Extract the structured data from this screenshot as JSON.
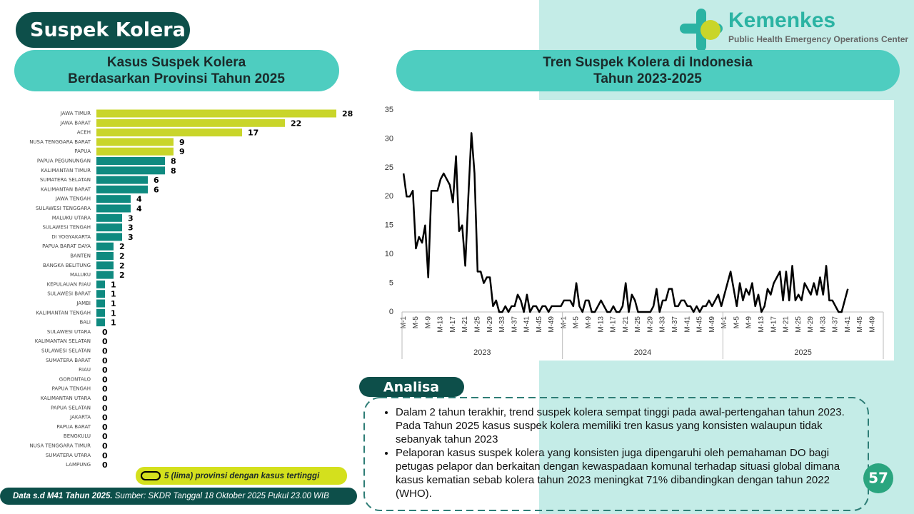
{
  "header": {
    "title": "Suspek Kolera",
    "logo_name": "Kemenkes",
    "logo_sub": "Public Health Emergency Operations Center"
  },
  "chart_data": [
    {
      "type": "hbar",
      "title": [
        "Kasus Suspek Kolera",
        "Berdasarkan Provinsi Tahun 2025"
      ],
      "categories": [
        "JAWA TIMUR",
        "JAWA BARAT",
        "ACEH",
        "NUSA TENGGARA BARAT",
        "PAPUA",
        "PAPUA PEGUNUNGAN",
        "KALIMANTAN TIMUR",
        "SUMATERA SELATAN",
        "KALIMANTAN BARAT",
        "JAWA TENGAH",
        "SULAWESI TENGGARA",
        "MALUKU UTARA",
        "SULAWESI TENGAH",
        "DI YOGYAKARTA",
        "PAPUA BARAT DAYA",
        "BANTEN",
        "BANGKA BELITUNG",
        "MALUKU",
        "KEPULAUAN RIAU",
        "SULAWESI BARAT",
        "JAMBI",
        "KALIMANTAN TENGAH",
        "BALI",
        "SULAWESI UTARA",
        "KALIMANTAN SELATAN",
        "SULAWESI SELATAN",
        "SUMATERA BARAT",
        "RIAU",
        "GORONTALO",
        "PAPUA TENGAH",
        "KALIMANTAN UTARA",
        "PAPUA SELATAN",
        "JAKARTA",
        "PAPUA BARAT",
        "BENGKULU",
        "NUSA TENGGARA TIMUR",
        "SUMATERA UTARA",
        "LAMPUNG"
      ],
      "values": [
        28,
        22,
        17,
        9,
        9,
        8,
        8,
        6,
        6,
        4,
        4,
        3,
        3,
        3,
        2,
        2,
        2,
        2,
        1,
        1,
        1,
        1,
        1,
        0,
        0,
        0,
        0,
        0,
        0,
        0,
        0,
        0,
        0,
        0,
        0,
        0,
        0,
        0
      ],
      "colors": [
        "#c9d52a",
        "#c9d52a",
        "#c9d52a",
        "#c9d52a",
        "#c9d52a",
        "#0f8a80",
        "#0f8a80",
        "#0f8a80",
        "#0f8a80",
        "#0f8a80",
        "#0f8a80",
        "#0f8a80",
        "#0f8a80",
        "#0f8a80",
        "#0f8a80",
        "#0f8a80",
        "#0f8a80",
        "#0f8a80",
        "#0f8a80",
        "#0f8a80",
        "#0f8a80",
        "#0f8a80",
        "#0f8a80",
        "#0f8a80",
        "#0f8a80",
        "#0f8a80",
        "#0f8a80",
        "#0f8a80",
        "#0f8a80",
        "#0f8a80",
        "#0f8a80",
        "#0f8a80",
        "#0f8a80",
        "#0f8a80",
        "#0f8a80",
        "#0f8a80",
        "#0f8a80",
        "#0f8a80"
      ],
      "legend": "5 (lima) provinsi dengan kasus tertinggi"
    },
    {
      "type": "line",
      "title": [
        "Tren Suspek Kolera di Indonesia",
        "Tahun 2023-2025"
      ],
      "x_groups": [
        "2023",
        "2024",
        "2025"
      ],
      "categories": [
        "M-1",
        null,
        null,
        null,
        "M-5",
        null,
        null,
        null,
        "M-9",
        null,
        null,
        null,
        "M-13",
        null,
        null,
        null,
        "M-17",
        null,
        null,
        null,
        "M-21",
        null,
        null,
        null,
        "M-25",
        null,
        null,
        null,
        "M-29",
        null,
        null,
        null,
        "M-33",
        null,
        null,
        null,
        "M-37",
        null,
        null,
        null,
        "M-41",
        null,
        null,
        null,
        "M-45",
        null,
        null,
        null,
        "M-49",
        null,
        null,
        null,
        "M-1",
        null,
        null,
        null,
        "M-5",
        null,
        null,
        null,
        "M-9",
        null,
        null,
        null,
        "M-13",
        null,
        null,
        null,
        "M-17",
        null,
        null,
        null,
        "M-21",
        null,
        null,
        null,
        "M-25",
        null,
        null,
        null,
        "M-29",
        null,
        null,
        null,
        "M-33",
        null,
        null,
        null,
        "M-37",
        null,
        null,
        null,
        "M-41",
        null,
        null,
        null,
        "M-45",
        null,
        null,
        null,
        "M-49",
        null,
        null,
        null,
        "M-1",
        null,
        null,
        null,
        "M-5",
        null,
        null,
        null,
        "M-9",
        null,
        null,
        null,
        "M-13",
        null,
        null,
        null,
        "M-17",
        null,
        null,
        null,
        "M-21",
        null,
        null,
        null,
        "M-25",
        null,
        null,
        null,
        "M-29",
        null,
        null,
        null,
        "M-33",
        null,
        null,
        null,
        "M-37",
        null,
        null,
        null,
        "M-41",
        null,
        null,
        null,
        "M-45",
        null,
        null,
        null,
        "M-49",
        null,
        null,
        null
      ],
      "series": [
        {
          "color": "#000000",
          "values": [
            24,
            20,
            20,
            21,
            11,
            13,
            12,
            15,
            6,
            21,
            21,
            21,
            23,
            24,
            23,
            22,
            19,
            27,
            14,
            15,
            8,
            20,
            31,
            24,
            7,
            7,
            5,
            6,
            6,
            1,
            2,
            0,
            0,
            1,
            0,
            1,
            1,
            3,
            2,
            0,
            3,
            0,
            1,
            1,
            0,
            1,
            1,
            0,
            1,
            1,
            1,
            1,
            2,
            2,
            2,
            1,
            5,
            1,
            0,
            2,
            2,
            0,
            0,
            1,
            2,
            1,
            0,
            0,
            1,
            0,
            0,
            1,
            5,
            0,
            3,
            2,
            0,
            0,
            0,
            0,
            0,
            1,
            4,
            0,
            2,
            2,
            4,
            4,
            1,
            1,
            2,
            2,
            1,
            1,
            0,
            1,
            0,
            1,
            1,
            2,
            1,
            2,
            3,
            1,
            3,
            5,
            7,
            4,
            1,
            5,
            2,
            4,
            3,
            5,
            1,
            3,
            0,
            1,
            4,
            3,
            5,
            6,
            7,
            2,
            7,
            2,
            8,
            2,
            3,
            2,
            5,
            4,
            3,
            5,
            3,
            6,
            3,
            8,
            2,
            2,
            1,
            0,
            0,
            2,
            4,
            null,
            null,
            null,
            null,
            null,
            null,
            null,
            null,
            null,
            null,
            null
          ]
        }
      ],
      "ylim": [
        0,
        35
      ],
      "yticks": [
        0,
        5,
        10,
        15,
        20,
        25,
        30,
        35
      ]
    }
  ],
  "analysis": {
    "title": "Analisa",
    "bullets": [
      "Dalam 2 tahun terakhir, trend suspek kolera sempat tinggi pada awal-pertengahan tahun 2023. Pada Tahun 2025 kasus suspek kolera memiliki tren kasus yang konsisten walaupun tidak sebanyak tahun 2023",
      "Pelaporan kasus suspek kolera yang konsisten juga dipengaruhi oleh pemahaman DO bagi petugas pelapor dan berkaitan dengan kewaspadaan komunal terhadap situasi global dimana kasus kematian sebab kolera tahun 2023 meningkat 71% dibandingkan dengan tahun 2022 (WHO)."
    ]
  },
  "footer": {
    "data": "Data s.d M41 Tahun 2025.",
    "source": "Sumber: SKDR Tanggal 18 Oktober 2025 Pukul 23.00 WIB"
  },
  "page_number": "57"
}
